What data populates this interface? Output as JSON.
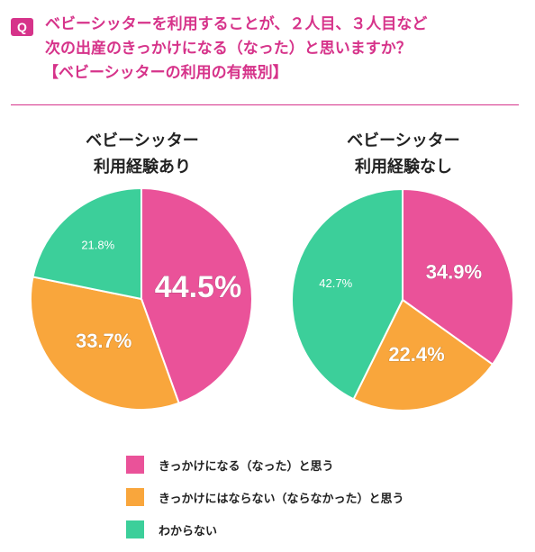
{
  "question": {
    "badge": "Q",
    "line1": "ベビーシッターを利用することが、２人目、３人目など",
    "line2": "次の出産のきっかけになる（なった）と思いますか？",
    "line3": "【ベビーシッターの利用の有無別】"
  },
  "colors": {
    "accent": "#d6338a",
    "yes": "#ea5299",
    "no": "#f9a63c",
    "unknown": "#3ccf9a"
  },
  "chart_data": [
    {
      "type": "pie",
      "title_line1": "ベビーシッター",
      "title_line2": "利用経験あり",
      "slices": [
        {
          "category": "きっかけになる（なった）と思う",
          "value": 44.5,
          "label": "44.5%"
        },
        {
          "category": "きっかけにはならない（ならなかった）と思う",
          "value": 33.7,
          "label": "33.7%"
        },
        {
          "category": "わからない",
          "value": 21.8,
          "label": "21.8%"
        }
      ]
    },
    {
      "type": "pie",
      "title_line1": "ベビーシッター",
      "title_line2": "利用経験なし",
      "slices": [
        {
          "category": "きっかけになる（なった）と思う",
          "value": 34.9,
          "label": "34.9%"
        },
        {
          "category": "きっかけにはならない（ならなかった）と思う",
          "value": 22.4,
          "label": "22.4%"
        },
        {
          "category": "わからない",
          "value": 42.7,
          "label": "42.7%"
        }
      ]
    }
  ],
  "legend": [
    {
      "label": "きっかけになる（なった）と思う",
      "color": "#ea5299"
    },
    {
      "label": "きっかけにはならない（ならなかった）と思う",
      "color": "#f9a63c"
    },
    {
      "label": "わからない",
      "color": "#3ccf9a"
    }
  ]
}
